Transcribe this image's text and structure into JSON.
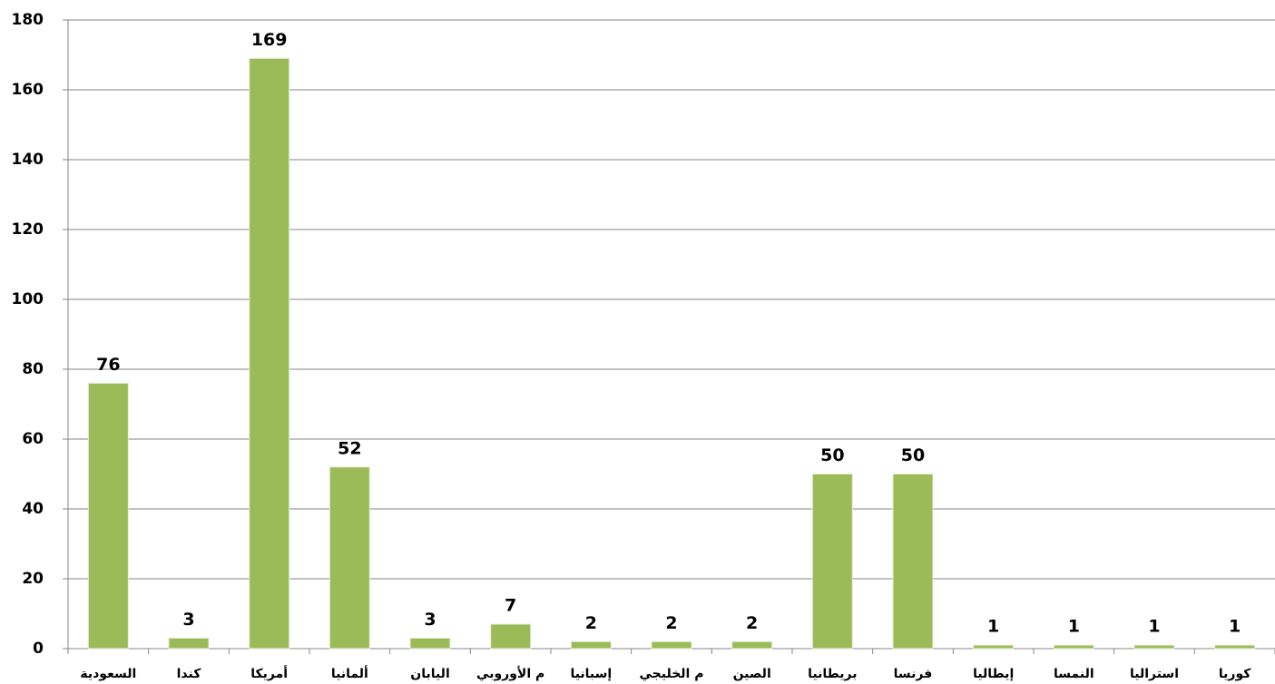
{
  "chart_data": {
    "type": "bar",
    "categories": [
      "السعودية",
      "كندا",
      "أمريكا",
      "ألمانيا",
      "اليابان",
      "م الأوروبي",
      "إسبانيا",
      "م الخليجي",
      "الصين",
      "بريطانيا",
      "فرنسا",
      "إيطاليا",
      "النمسا",
      "استراليا",
      "كوريا"
    ],
    "values": [
      76,
      3,
      169,
      52,
      3,
      7,
      2,
      2,
      2,
      50,
      50,
      1,
      1,
      1,
      1
    ],
    "color": "#9bbb59",
    "ylim": [
      0,
      180
    ],
    "yticks": [
      0,
      20,
      40,
      60,
      80,
      100,
      120,
      140,
      160,
      180
    ],
    "grid": true
  }
}
